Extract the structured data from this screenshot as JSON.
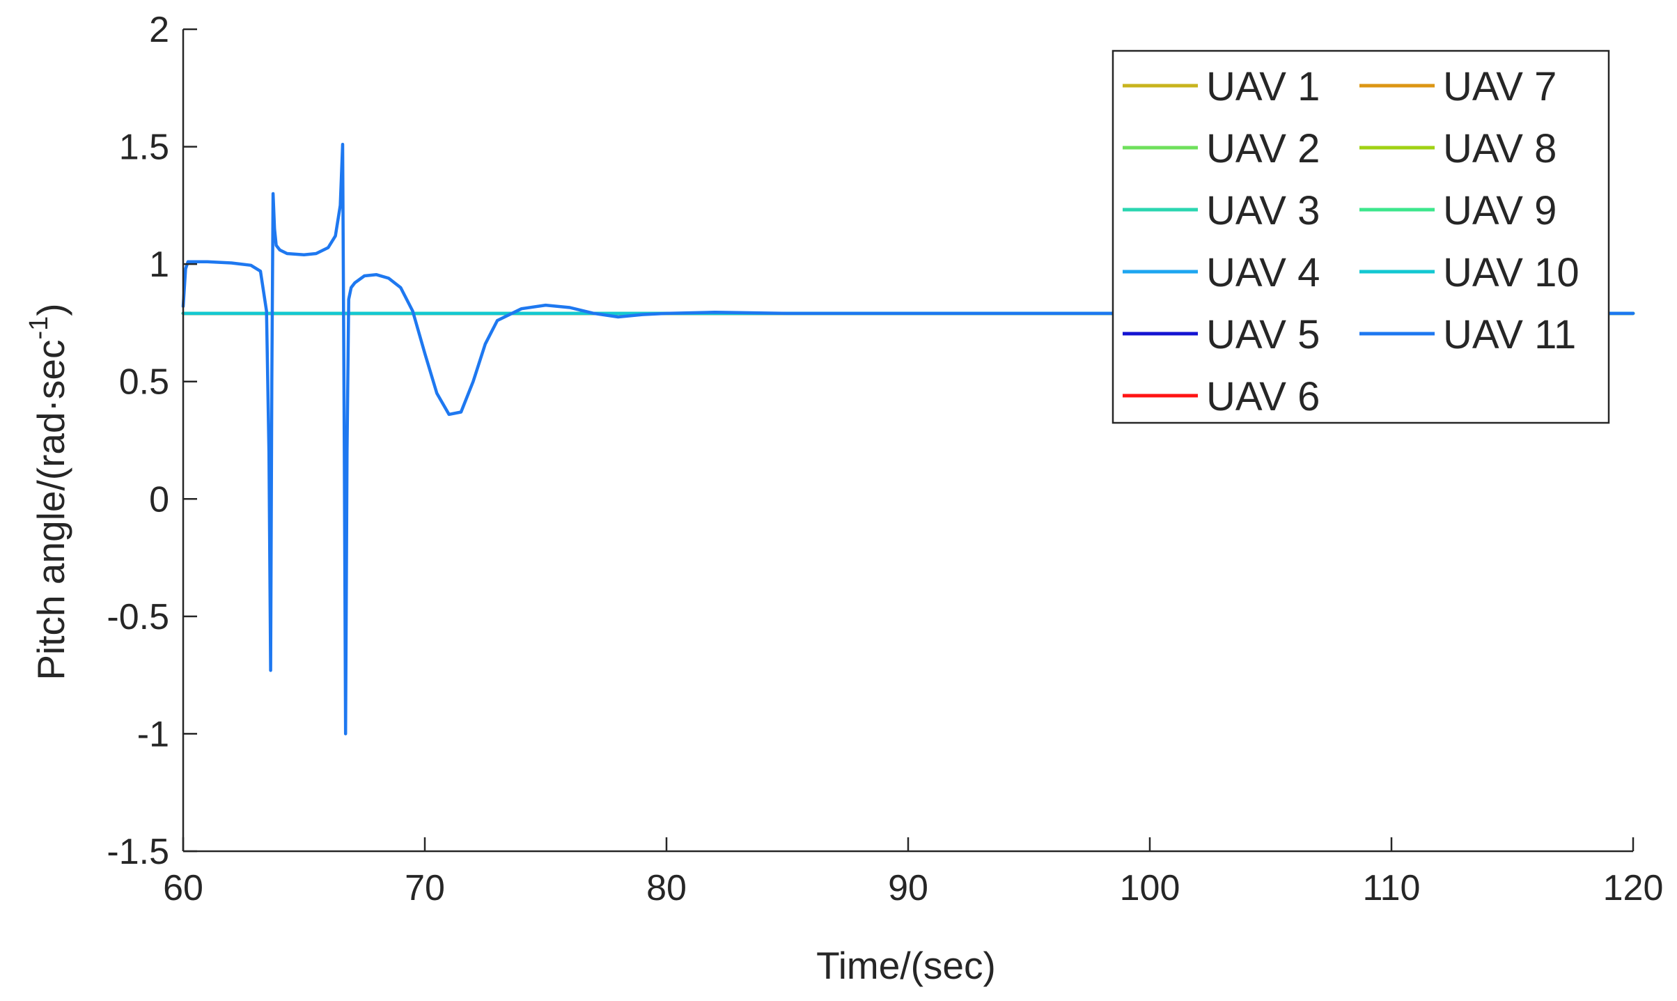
{
  "chart_data": {
    "type": "line",
    "title": "",
    "xlabel": "Time/(sec)",
    "ylabel_main": "Pitch angle/(rad·sec",
    "ylabel_sup": "-1",
    "ylabel_close": ")",
    "xlim": [
      60,
      120
    ],
    "ylim": [
      -1.5,
      2
    ],
    "xticks": [
      60,
      70,
      80,
      90,
      100,
      110,
      120
    ],
    "yticks": [
      -1.5,
      -1,
      -0.5,
      0,
      0.5,
      1,
      1.5,
      2
    ],
    "xtick_labels": [
      "60",
      "70",
      "80",
      "90",
      "100",
      "110",
      "120"
    ],
    "ytick_labels": [
      "-1.5",
      "-1",
      "-0.5",
      "0",
      "0.5",
      "1",
      "1.5",
      "2"
    ],
    "grid": false,
    "legend_position": "top-right",
    "legend_columns": 2,
    "series": [
      {
        "name": "UAV 1",
        "color": "#c8b41e",
        "x": [
          60,
          120
        ],
        "y": [
          0.79,
          0.79
        ]
      },
      {
        "name": "UAV 2",
        "color": "#6fe05c",
        "x": [
          60,
          120
        ],
        "y": [
          0.79,
          0.79
        ]
      },
      {
        "name": "UAV 3",
        "color": "#2ad6b0",
        "x": [
          60,
          120
        ],
        "y": [
          0.79,
          0.79
        ]
      },
      {
        "name": "UAV 4",
        "color": "#1ea6f0",
        "x": [
          60,
          120
        ],
        "y": [
          0.79,
          0.79
        ]
      },
      {
        "name": "UAV 5",
        "color": "#1414d2",
        "x": [
          60,
          120
        ],
        "y": [
          0.79,
          0.79
        ]
      },
      {
        "name": "UAV 6",
        "color": "#ff1414",
        "x": [
          60,
          120
        ],
        "y": [
          0.79,
          0.79
        ]
      },
      {
        "name": "UAV 7",
        "color": "#dc9614",
        "x": [
          60,
          120
        ],
        "y": [
          0.79,
          0.79
        ]
      },
      {
        "name": "UAV 8",
        "color": "#a0d214",
        "x": [
          60,
          120
        ],
        "y": [
          0.79,
          0.79
        ]
      },
      {
        "name": "UAV 9",
        "color": "#3ce68c",
        "x": [
          60,
          120
        ],
        "y": [
          0.79,
          0.79
        ]
      },
      {
        "name": "UAV 10",
        "color": "#14c8d2",
        "x": [
          60,
          120
        ],
        "y": [
          0.79,
          0.79
        ]
      },
      {
        "name": "UAV 11",
        "color": "#1e78f0",
        "x": [
          60,
          60.1,
          60.2,
          61,
          62,
          62.8,
          63.2,
          63.45,
          63.55,
          63.62,
          63.67,
          63.72,
          63.78,
          63.85,
          64,
          64.3,
          65,
          65.5,
          66,
          66.3,
          66.5,
          66.6,
          66.67,
          66.72,
          66.78,
          66.85,
          66.95,
          67.1,
          67.5,
          68,
          68.5,
          69,
          69.5,
          70,
          70.5,
          71,
          71.5,
          72,
          72.5,
          73,
          74,
          75,
          76,
          77,
          78,
          79,
          80,
          82,
          85,
          90,
          100,
          120
        ],
        "y": [
          0.82,
          0.98,
          1.01,
          1.01,
          1.005,
          0.995,
          0.97,
          0.8,
          0.2,
          -0.73,
          0.5,
          1.3,
          1.15,
          1.08,
          1.06,
          1.045,
          1.04,
          1.045,
          1.07,
          1.12,
          1.25,
          1.51,
          0.2,
          -1.0,
          0.2,
          0.85,
          0.9,
          0.92,
          0.95,
          0.955,
          0.94,
          0.9,
          0.8,
          0.62,
          0.45,
          0.36,
          0.37,
          0.5,
          0.66,
          0.76,
          0.81,
          0.825,
          0.815,
          0.79,
          0.775,
          0.785,
          0.79,
          0.795,
          0.79,
          0.79,
          0.79,
          0.79
        ]
      }
    ]
  }
}
